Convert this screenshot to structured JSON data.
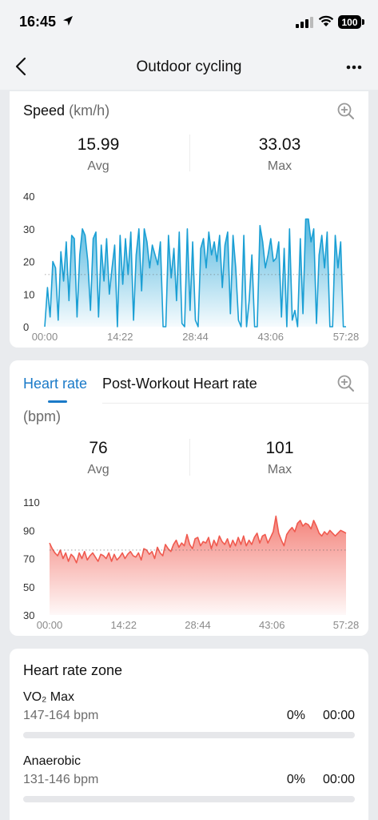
{
  "status": {
    "time": "16:45",
    "battery": "100"
  },
  "nav": {
    "title": "Outdoor cycling"
  },
  "speed": {
    "title": "Speed",
    "unit": "(km/h)",
    "avg_value": "15.99",
    "avg_label": "Avg",
    "max_value": "33.03",
    "max_label": "Max"
  },
  "heart": {
    "tab_active": "Heart rate",
    "tab_other": "Post-Workout Heart rate",
    "unit": "(bpm)",
    "avg_value": "76",
    "avg_label": "Avg",
    "max_value": "101",
    "max_label": "Max"
  },
  "zones": {
    "title": "Heart rate zone",
    "items": [
      {
        "name": "VO₂ Max",
        "range": "147-164 bpm",
        "percent": "0%",
        "time": "00:00",
        "fill": 0
      },
      {
        "name": "Anaerobic",
        "range": "131-146 bpm",
        "percent": "0%",
        "time": "00:00",
        "fill": 0
      }
    ]
  },
  "chart_data": [
    {
      "type": "area",
      "ylim": [
        0,
        40
      ],
      "yticks": [
        "0",
        "10",
        "20",
        "30",
        "40"
      ],
      "xticks": [
        "00:00",
        "14:22",
        "28:44",
        "43:06",
        "57:28"
      ],
      "avg_line": 15.99,
      "color": "#1a9fd4",
      "values": [
        0,
        12,
        3,
        20,
        18,
        2,
        23,
        14,
        26,
        8,
        28,
        27,
        3,
        22,
        30,
        28,
        20,
        5,
        27,
        29,
        3,
        25,
        14,
        27,
        10,
        18,
        25,
        0,
        28,
        13,
        27,
        16,
        29,
        2,
        22,
        30,
        11,
        30,
        26,
        18,
        25,
        22,
        19,
        26,
        0,
        0,
        28,
        15,
        24,
        8,
        29,
        1,
        0,
        30,
        5,
        26,
        2,
        0,
        24,
        27,
        18,
        29,
        22,
        26,
        20,
        28,
        12,
        25,
        29,
        4,
        28,
        18,
        2,
        0,
        28,
        0,
        8,
        22,
        0,
        0,
        31,
        26,
        18,
        22,
        27,
        20,
        21,
        26,
        3,
        24,
        0,
        30,
        2,
        5,
        0,
        27,
        4,
        33,
        33,
        26,
        30,
        1,
        22,
        28,
        18,
        29,
        0,
        0,
        28,
        18,
        26,
        0,
        0
      ]
    },
    {
      "type": "area",
      "ylim": [
        30,
        110
      ],
      "yticks": [
        "30",
        "50",
        "70",
        "90",
        "110"
      ],
      "xticks": [
        "00:00",
        "14:22",
        "28:44",
        "43:06",
        "57:28"
      ],
      "avg_line": 76,
      "color": "#f05a4f",
      "values": [
        81,
        77,
        74,
        72,
        76,
        70,
        74,
        68,
        73,
        71,
        67,
        74,
        70,
        75,
        69,
        72,
        74,
        71,
        68,
        73,
        72,
        70,
        74,
        68,
        73,
        69,
        71,
        74,
        70,
        73,
        75,
        72,
        71,
        74,
        69,
        77,
        76,
        73,
        75,
        70,
        78,
        74,
        72,
        80,
        77,
        75,
        80,
        83,
        78,
        81,
        79,
        87,
        80,
        77,
        84,
        85,
        79,
        82,
        81,
        85,
        77,
        83,
        79,
        86,
        82,
        80,
        84,
        78,
        83,
        79,
        85,
        80,
        86,
        79,
        83,
        80,
        85,
        88,
        81,
        86,
        87,
        81,
        85,
        89,
        100,
        88,
        83,
        79,
        87,
        90,
        92,
        89,
        95,
        97,
        93,
        95,
        94,
        91,
        97,
        93,
        88,
        86,
        89,
        87,
        90,
        88,
        86,
        88,
        90,
        89,
        88
      ]
    }
  ]
}
